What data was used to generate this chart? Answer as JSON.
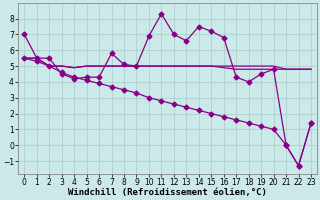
{
  "xlabel": "Windchill (Refroidissement éolien,°C)",
  "background_color": "#cce9e9",
  "grid_color": "#aacccc",
  "line_color": "#880088",
  "xlim": [
    -0.5,
    23.5
  ],
  "ylim": [
    -1.8,
    9.0
  ],
  "yticks": [
    -1,
    0,
    1,
    2,
    3,
    4,
    5,
    6,
    7,
    8
  ],
  "xticks": [
    0,
    1,
    2,
    3,
    4,
    5,
    6,
    7,
    8,
    9,
    10,
    11,
    12,
    13,
    14,
    15,
    16,
    17,
    18,
    19,
    20,
    21,
    22,
    23
  ],
  "series1_x": [
    0,
    1,
    2,
    3,
    4,
    5,
    6,
    7,
    8,
    9,
    10,
    11,
    12,
    13,
    14,
    15,
    16,
    17,
    18,
    19,
    20,
    21,
    22,
    23
  ],
  "series1_y": [
    7.0,
    5.5,
    5.5,
    4.5,
    4.2,
    4.3,
    4.3,
    5.8,
    5.1,
    5.0,
    6.9,
    8.3,
    7.0,
    6.6,
    7.5,
    7.2,
    6.8,
    4.3,
    4.0,
    4.5,
    4.8,
    0.0,
    -1.3,
    1.4
  ],
  "series2_x": [
    0,
    1,
    2,
    3,
    4,
    5,
    6,
    7,
    8,
    9,
    10,
    11,
    12,
    13,
    14,
    15,
    16,
    17,
    18,
    19,
    20,
    21,
    22,
    23
  ],
  "series2_y": [
    5.5,
    5.5,
    5.0,
    5.0,
    4.9,
    5.0,
    5.0,
    5.0,
    5.0,
    5.0,
    5.0,
    5.0,
    5.0,
    5.0,
    5.0,
    5.0,
    5.0,
    5.0,
    5.0,
    5.0,
    5.0,
    4.8,
    4.8,
    4.8
  ],
  "series3_x": [
    0,
    1,
    2,
    3,
    4,
    5,
    6,
    7,
    8,
    9,
    10,
    11,
    12,
    13,
    14,
    15,
    16,
    17,
    18,
    19,
    20,
    21,
    22,
    23
  ],
  "series3_y": [
    5.5,
    5.5,
    5.0,
    5.0,
    4.9,
    5.0,
    5.0,
    5.0,
    5.0,
    5.0,
    5.0,
    5.0,
    5.0,
    5.0,
    5.0,
    5.0,
    4.9,
    4.8,
    4.8,
    4.8,
    4.8,
    4.8,
    4.8,
    4.8
  ],
  "series4_x": [
    0,
    1,
    2,
    3,
    4,
    5,
    6,
    7,
    8,
    9,
    10,
    11,
    12,
    13,
    14,
    15,
    16,
    17,
    18,
    19,
    20,
    21,
    22,
    23
  ],
  "series4_y": [
    5.5,
    5.3,
    5.0,
    4.6,
    4.3,
    4.1,
    3.9,
    3.7,
    3.5,
    3.3,
    3.0,
    2.8,
    2.6,
    2.4,
    2.2,
    2.0,
    1.8,
    1.6,
    1.4,
    1.2,
    1.0,
    0.0,
    -1.3,
    1.4
  ],
  "marker": "D",
  "markersize": 2.5,
  "linewidth": 0.9,
  "tick_fontsize": 5.5,
  "xlabel_fontsize": 6.5
}
